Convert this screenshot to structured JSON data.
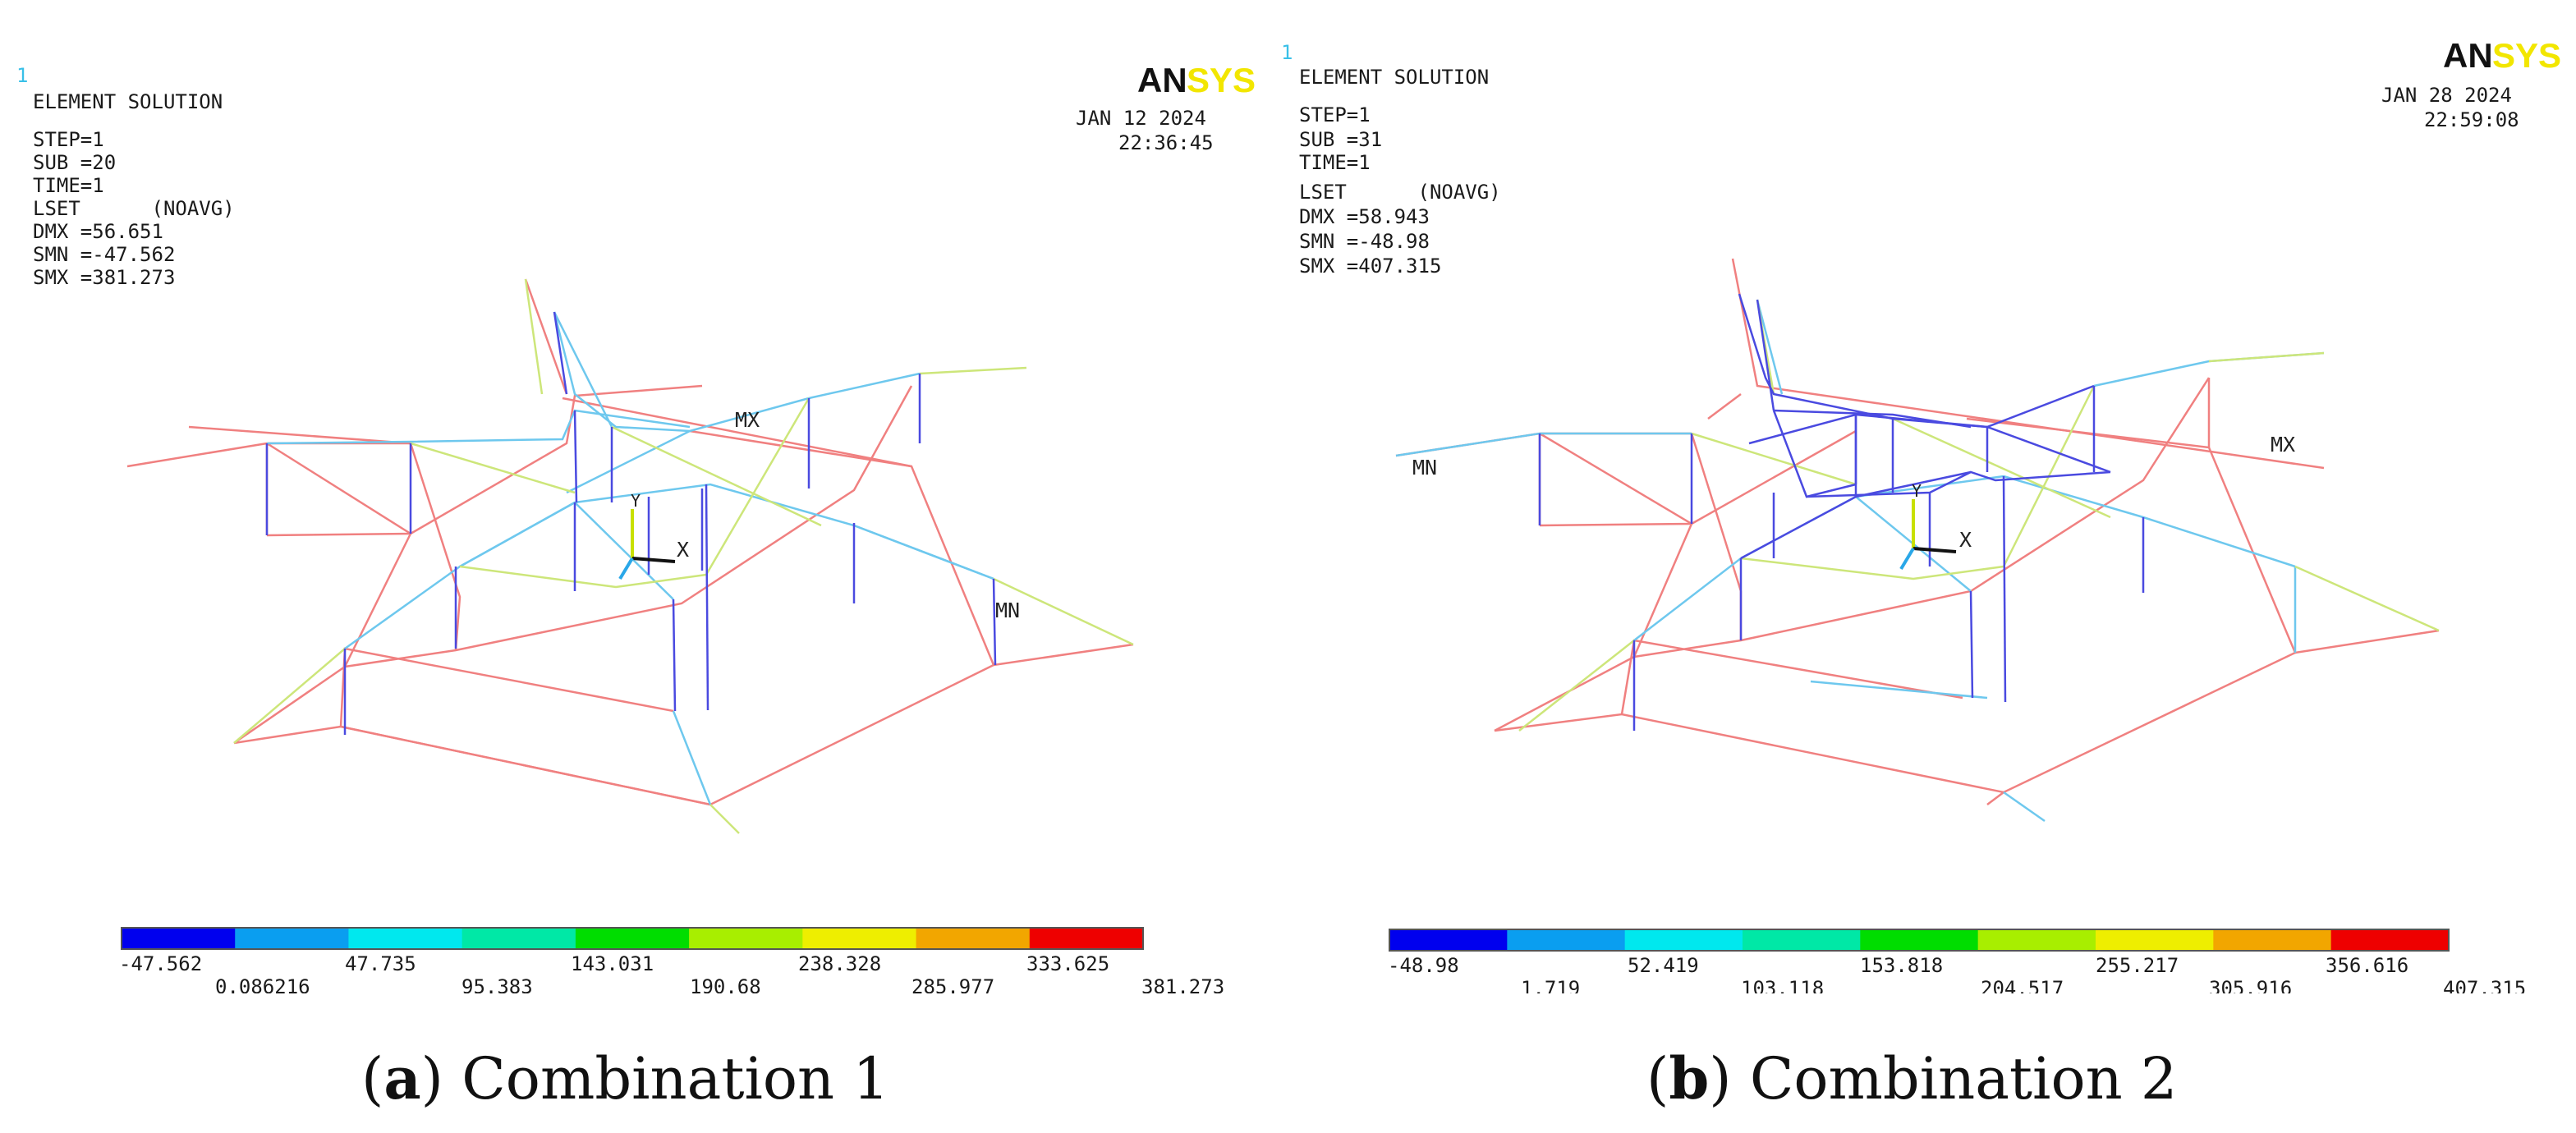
{
  "panels": [
    {
      "id": "a",
      "frame_number": "1",
      "logo": {
        "part1": "AN",
        "part2": "SYS"
      },
      "title": "ELEMENT SOLUTION",
      "date": "JAN 12 2024",
      "time": "22:36:45",
      "info": [
        "STEP=1",
        "SUB =20",
        "TIME=1",
        "LSET      (NOAVG)",
        "DMX =56.651",
        "SMN =-47.562",
        "SMX =381.273"
      ],
      "max_label": "MX",
      "min_label": "MN",
      "axis_y": "Y",
      "axis_x": "X",
      "legend_top": [
        "-47.562",
        "47.735",
        "143.031",
        "238.328",
        "333.625"
      ],
      "legend_bottom": [
        "0.086216",
        "95.383",
        "190.68",
        "285.977",
        "381.273"
      ],
      "caption_letter": "a",
      "caption_text": "Combination 1"
    },
    {
      "id": "b",
      "frame_number": "1",
      "logo": {
        "part1": "AN",
        "part2": "SYS"
      },
      "title": "ELEMENT SOLUTION",
      "date": "JAN 28 2024",
      "time": "22:59:08",
      "info": [
        "STEP=1",
        "SUB =31",
        "TIME=1",
        "LSET      (NOAVG)",
        "DMX =58.943",
        "SMN =-48.98",
        "SMX =407.315"
      ],
      "max_label": "MX",
      "min_label": "MN",
      "axis_y": "Y",
      "axis_x": "X",
      "legend_top": [
        "-48.98",
        "52.419",
        "153.818",
        "255.217",
        "356.616"
      ],
      "legend_bottom": [
        "1.719",
        "103.118",
        "204.517",
        "305.916",
        "407.315"
      ],
      "caption_letter": "b",
      "caption_text": "Combination 2"
    }
  ],
  "legend_colors": [
    "#0000ee",
    "#0a9ef0",
    "#00e8ee",
    "#00e8a6",
    "#00dd00",
    "#a8ee00",
    "#eeee00",
    "#f2a600",
    "#ee0000"
  ],
  "member_colors": {
    "red": "#f08080",
    "cyan": "#6ec8ee",
    "yellow_green": "#cde67a",
    "blue": "#4a4ae0"
  }
}
